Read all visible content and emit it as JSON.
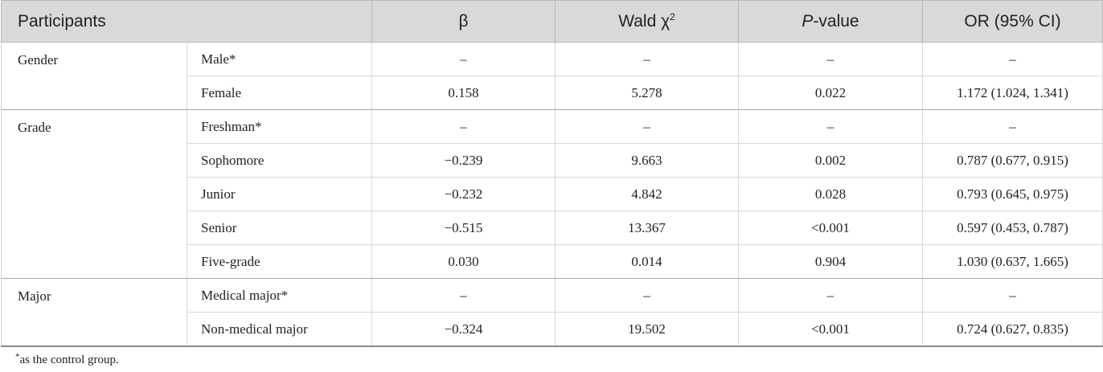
{
  "table": {
    "header": {
      "participants": "Participants",
      "beta": "β",
      "wald": {
        "text": "Wald χ",
        "superscript": "2"
      },
      "p_value": {
        "italic": "P",
        "text": "-value"
      },
      "or": "OR (95% CI)"
    },
    "groups": [
      {
        "name": "Gender",
        "rows": [
          [
            "Male*",
            "–",
            "–",
            "–",
            "–"
          ],
          [
            "Female",
            "0.158",
            "5.278",
            "0.022",
            "1.172 (1.024, 1.341)"
          ]
        ]
      },
      {
        "name": "Grade",
        "rows": [
          [
            "Freshman*",
            "–",
            "–",
            "–",
            "–"
          ],
          [
            "Sophomore",
            "−0.239",
            "9.663",
            "0.002",
            "0.787 (0.677, 0.915)"
          ],
          [
            "Junior",
            "−0.232",
            "4.842",
            "0.028",
            "0.793 (0.645, 0.975)"
          ],
          [
            "Senior",
            "−0.515",
            "13.367",
            "<0.001",
            "0.597 (0.453, 0.787)"
          ],
          [
            "Five-grade",
            "0.030",
            "0.014",
            "0.904",
            "1.030 (0.637, 1.665)"
          ]
        ]
      },
      {
        "name": "Major",
        "rows": [
          [
            "Medical major*",
            "–",
            "–",
            "–",
            "–"
          ],
          [
            "Non-medical major",
            "−0.324",
            "19.502",
            "<0.001",
            "0.724 (0.627, 0.835)"
          ]
        ]
      }
    ],
    "footnote": {
      "mark": "*",
      "text": "as the control group."
    }
  }
}
